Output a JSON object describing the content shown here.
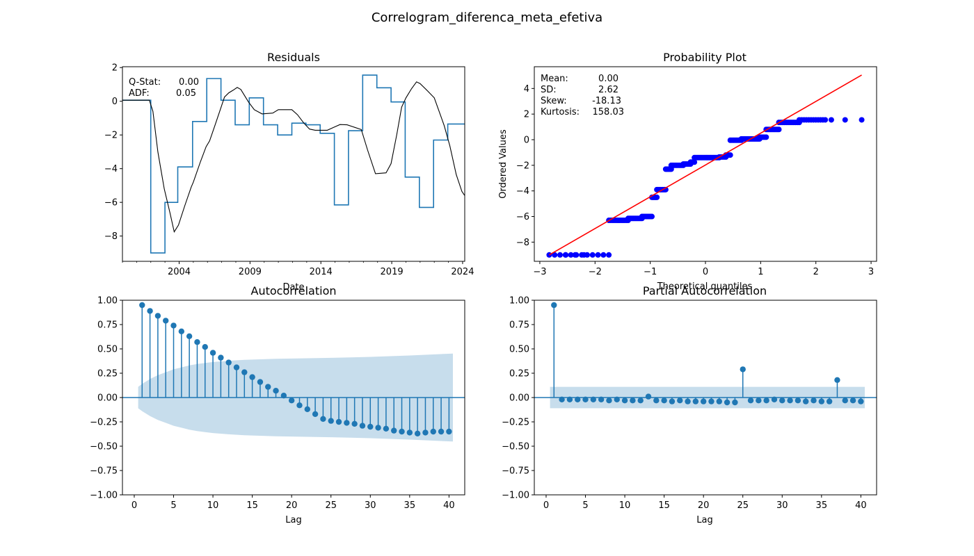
{
  "figure": {
    "title": "Correlogram_diferenca_meta_efetiva"
  },
  "chart_data": [
    {
      "type": "line",
      "title": "Residuals",
      "xlabel": "Date",
      "ylabel": "",
      "xlim": [
        2000.0,
        2024.15
      ],
      "ylim": [
        -9.5,
        2.05
      ],
      "xticks": [
        2004,
        2009,
        2014,
        2019,
        2024
      ],
      "yticks": [
        2,
        0,
        -2,
        -4,
        -6,
        -8
      ],
      "stats_text": {
        "qstat_label": "Q-Stat:",
        "qstat_value": "0.00",
        "adf_label": "ADF:",
        "adf_value": "0.05"
      },
      "series": [
        {
          "color": "#1f77b4",
          "step": true,
          "points": [
            [
              2000.0,
              0.06
            ],
            [
              2002.0,
              0.06
            ],
            [
              2002.0,
              -9.0
            ],
            [
              2003.0,
              -9.0
            ],
            [
              2003.0,
              -6.0
            ],
            [
              2003.9,
              -6.0
            ],
            [
              2003.9,
              -3.9
            ],
            [
              2004.95,
              -3.9
            ],
            [
              2004.95,
              -1.2
            ],
            [
              2005.95,
              -1.2
            ],
            [
              2005.95,
              1.35
            ],
            [
              2006.95,
              1.35
            ],
            [
              2006.95,
              0.06
            ],
            [
              2007.95,
              0.06
            ],
            [
              2007.95,
              -1.4
            ],
            [
              2008.95,
              -1.4
            ],
            [
              2008.95,
              0.2
            ],
            [
              2009.95,
              0.2
            ],
            [
              2009.95,
              -1.4
            ],
            [
              2010.95,
              -1.4
            ],
            [
              2010.95,
              -2.0
            ],
            [
              2011.95,
              -2.0
            ],
            [
              2011.95,
              -1.3
            ],
            [
              2012.95,
              -1.3
            ],
            [
              2012.95,
              -1.4
            ],
            [
              2013.95,
              -1.4
            ],
            [
              2013.95,
              -1.9
            ],
            [
              2014.95,
              -1.9
            ],
            [
              2014.95,
              -6.15
            ],
            [
              2015.95,
              -6.15
            ],
            [
              2015.95,
              -1.75
            ],
            [
              2016.95,
              -1.75
            ],
            [
              2016.95,
              1.55
            ],
            [
              2017.95,
              1.55
            ],
            [
              2017.95,
              0.8
            ],
            [
              2018.95,
              0.8
            ],
            [
              2018.95,
              -0.04
            ],
            [
              2019.95,
              -0.04
            ],
            [
              2019.95,
              -4.5
            ],
            [
              2020.95,
              -4.5
            ],
            [
              2020.95,
              -6.3
            ],
            [
              2021.95,
              -6.3
            ],
            [
              2021.95,
              -2.3
            ],
            [
              2022.95,
              -2.3
            ],
            [
              2022.95,
              -1.35
            ],
            [
              2024.15,
              -1.35
            ]
          ]
        },
        {
          "color": "#000000",
          "step": false,
          "points": [
            [
              2000.0,
              0.06
            ],
            [
              2001.9,
              0.06
            ],
            [
              2002.15,
              -0.6
            ],
            [
              2002.5,
              -3.0
            ],
            [
              2002.95,
              -5.2
            ],
            [
              2003.35,
              -6.6
            ],
            [
              2003.65,
              -7.75
            ],
            [
              2003.95,
              -7.35
            ],
            [
              2004.4,
              -6.2
            ],
            [
              2004.85,
              -5.1
            ],
            [
              2005.0,
              -4.8
            ],
            [
              2005.5,
              -3.6
            ],
            [
              2005.9,
              -2.7
            ],
            [
              2006.15,
              -2.35
            ],
            [
              2006.5,
              -1.5
            ],
            [
              2006.9,
              -0.5
            ],
            [
              2007.2,
              0.25
            ],
            [
              2007.5,
              0.5
            ],
            [
              2007.8,
              0.65
            ],
            [
              2008.1,
              0.82
            ],
            [
              2008.35,
              0.7
            ],
            [
              2008.9,
              -0.05
            ],
            [
              2009.3,
              -0.5
            ],
            [
              2009.85,
              -0.75
            ],
            [
              2010.6,
              -0.7
            ],
            [
              2011.0,
              -0.5
            ],
            [
              2011.95,
              -0.5
            ],
            [
              2012.35,
              -0.8
            ],
            [
              2012.8,
              -1.3
            ],
            [
              2013.2,
              -1.65
            ],
            [
              2013.6,
              -1.72
            ],
            [
              2014.45,
              -1.72
            ],
            [
              2014.9,
              -1.55
            ],
            [
              2015.35,
              -1.38
            ],
            [
              2015.85,
              -1.4
            ],
            [
              2016.85,
              -1.68
            ],
            [
              2017.3,
              -2.9
            ],
            [
              2017.85,
              -4.3
            ],
            [
              2018.6,
              -4.25
            ],
            [
              2018.95,
              -3.7
            ],
            [
              2019.35,
              -2.0
            ],
            [
              2019.7,
              -0.35
            ],
            [
              2020.0,
              0.2
            ],
            [
              2020.4,
              0.75
            ],
            [
              2020.75,
              1.15
            ],
            [
              2021.0,
              1.05
            ],
            [
              2021.55,
              0.6
            ],
            [
              2022.0,
              0.2
            ],
            [
              2022.3,
              -0.5
            ],
            [
              2022.7,
              -1.45
            ],
            [
              2023.1,
              -2.65
            ],
            [
              2023.55,
              -4.35
            ],
            [
              2023.95,
              -5.35
            ],
            [
              2024.15,
              -5.6
            ]
          ],
          "note": ""
        }
      ]
    },
    {
      "type": "scatter",
      "title": "Probability Plot",
      "xlabel": "Theoretical quantiles",
      "ylabel": "Ordered Values",
      "xlim": [
        -3.1,
        3.1
      ],
      "ylim": [
        -9.5,
        5.7
      ],
      "xticks": [
        -3,
        -2,
        -1,
        0,
        1,
        2,
        3
      ],
      "yticks": [
        4,
        2,
        0,
        -2,
        -4,
        -6,
        -8
      ],
      "stats_text": {
        "mean_label": "Mean:",
        "mean_value": "0.00",
        "sd_label": "SD:",
        "sd_value": "2.62",
        "skew_label": "Skew:",
        "skew_value": "-18.13",
        "kurt_label": "Kurtosis:",
        "kurt_value": "158.03"
      },
      "fit_line": {
        "color": "#ff0000",
        "x": [
          -2.83,
          2.83
        ],
        "y": [
          -9.0,
          5.05
        ]
      },
      "series": [
        {
          "color": "#0000ff",
          "groups": [
            {
              "y": -9.0,
              "x_from": -2.83,
              "x_to": -1.75,
              "count": 12
            },
            {
              "y": -6.3,
              "x_from": -1.75,
              "x_to": -1.4,
              "count": 12
            },
            {
              "y": -6.15,
              "x_from": -1.4,
              "x_to": -1.15,
              "count": 12
            },
            {
              "y": -6.0,
              "x_from": -1.15,
              "x_to": -0.97,
              "count": 8
            },
            {
              "y": -4.5,
              "x_from": -0.97,
              "x_to": -0.88,
              "count": 6
            },
            {
              "y": -3.9,
              "x_from": -0.88,
              "x_to": -0.72,
              "count": 10
            },
            {
              "y": -2.3,
              "x_from": -0.72,
              "x_to": -0.62,
              "count": 6
            },
            {
              "y": -2.0,
              "x_from": -0.62,
              "x_to": -0.4,
              "count": 10
            },
            {
              "y": -1.9,
              "x_from": -0.4,
              "x_to": -0.27,
              "count": 6
            },
            {
              "y": -1.75,
              "x_from": -0.27,
              "x_to": -0.2,
              "count": 4
            },
            {
              "y": -1.4,
              "x_from": -0.2,
              "x_to": 0.25,
              "count": 18
            },
            {
              "y": -1.35,
              "x_from": 0.25,
              "x_to": 0.37,
              "count": 5
            },
            {
              "y": -1.2,
              "x_from": 0.37,
              "x_to": 0.45,
              "count": 4
            },
            {
              "y": -0.04,
              "x_from": 0.45,
              "x_to": 0.65,
              "count": 8
            },
            {
              "y": 0.06,
              "x_from": 0.65,
              "x_to": 0.98,
              "count": 15
            },
            {
              "y": 0.2,
              "x_from": 0.98,
              "x_to": 1.1,
              "count": 6
            },
            {
              "y": 0.8,
              "x_from": 1.1,
              "x_to": 1.33,
              "count": 10
            },
            {
              "y": 1.35,
              "x_from": 1.33,
              "x_to": 1.7,
              "count": 12
            },
            {
              "y": 1.55,
              "x_from": 1.7,
              "x_to": 2.17,
              "count": 12
            },
            {
              "y": 1.55,
              "x_from": 2.28,
              "x_to": 2.28,
              "count": 1
            },
            {
              "y": 1.55,
              "x_from": 2.53,
              "x_to": 2.53,
              "count": 1
            },
            {
              "y": 1.55,
              "x_from": 2.83,
              "x_to": 2.83,
              "count": 1
            }
          ]
        },
        {
          "x": -2.53,
          "y": -9.0
        },
        {
          "x": -2.36,
          "y": -9.0
        },
        {
          "x": -2.2,
          "y": -9.0
        }
      ]
    },
    {
      "type": "stem",
      "title": "Autocorrelation",
      "xlabel": "Lag",
      "ylabel": "",
      "xlim": [
        -1.5,
        42
      ],
      "ylim": [
        -1.0,
        1.0
      ],
      "xticks": [
        0,
        5,
        10,
        15,
        20,
        25,
        30,
        35,
        40
      ],
      "yticks": [
        1.0,
        0.75,
        0.5,
        0.25,
        0.0,
        -0.25,
        -0.5,
        -0.75,
        -1.0
      ],
      "color": "#1f77b4",
      "confint_color": "#1f77b4",
      "lags": [
        1,
        2,
        3,
        4,
        5,
        6,
        7,
        8,
        9,
        10,
        11,
        12,
        13,
        14,
        15,
        16,
        17,
        18,
        19,
        20,
        21,
        22,
        23,
        24,
        25,
        26,
        27,
        28,
        29,
        30,
        31,
        32,
        33,
        34,
        35,
        36,
        37,
        38,
        39,
        40
      ],
      "values": [
        0.95,
        0.89,
        0.84,
        0.79,
        0.74,
        0.68,
        0.63,
        0.57,
        0.52,
        0.46,
        0.41,
        0.36,
        0.31,
        0.26,
        0.21,
        0.16,
        0.11,
        0.07,
        0.02,
        -0.03,
        -0.08,
        -0.12,
        -0.17,
        -0.22,
        -0.24,
        -0.25,
        -0.26,
        -0.27,
        -0.29,
        -0.3,
        -0.31,
        -0.32,
        -0.34,
        -0.35,
        -0.36,
        -0.37,
        -0.36,
        -0.35,
        -0.35,
        -0.35
      ],
      "confint": {
        "lags": [
          0.5,
          1,
          2,
          3,
          4,
          5,
          6,
          7,
          8,
          9,
          10,
          12,
          14,
          16,
          18,
          20,
          25,
          30,
          35,
          40.5
        ],
        "half_width": [
          0.11,
          0.14,
          0.19,
          0.23,
          0.26,
          0.29,
          0.31,
          0.33,
          0.345,
          0.355,
          0.365,
          0.378,
          0.388,
          0.393,
          0.398,
          0.401,
          0.408,
          0.418,
          0.432,
          0.452
        ]
      }
    },
    {
      "type": "stem",
      "title": "Partial Autocorrelation",
      "xlabel": "Lag",
      "ylabel": "",
      "xlim": [
        -1.5,
        42
      ],
      "ylim": [
        -1.0,
        1.0
      ],
      "xticks": [
        0,
        5,
        10,
        15,
        20,
        25,
        30,
        35,
        40
      ],
      "yticks": [
        1.0,
        0.75,
        0.5,
        0.25,
        0.0,
        -0.25,
        -0.5,
        -0.75,
        -1.0
      ],
      "color": "#1f77b4",
      "confint_color": "#1f77b4",
      "lags": [
        1,
        2,
        3,
        4,
        5,
        6,
        7,
        8,
        9,
        10,
        11,
        12,
        13,
        14,
        15,
        16,
        17,
        18,
        19,
        20,
        21,
        22,
        23,
        24,
        25,
        26,
        27,
        28,
        29,
        30,
        31,
        32,
        33,
        34,
        35,
        36,
        37,
        38,
        39,
        40
      ],
      "values": [
        0.95,
        -0.02,
        -0.02,
        -0.02,
        -0.02,
        -0.02,
        -0.02,
        -0.03,
        -0.02,
        -0.03,
        -0.03,
        -0.03,
        0.01,
        -0.03,
        -0.03,
        -0.04,
        -0.03,
        -0.04,
        -0.04,
        -0.04,
        -0.04,
        -0.04,
        -0.05,
        -0.05,
        0.29,
        -0.03,
        -0.03,
        -0.03,
        -0.02,
        -0.03,
        -0.03,
        -0.03,
        -0.04,
        -0.03,
        -0.04,
        -0.04,
        0.18,
        -0.03,
        -0.03,
        -0.04
      ],
      "confint": {
        "lags": [
          0.5,
          40.5
        ],
        "half_width": [
          0.11,
          0.11
        ]
      }
    }
  ]
}
